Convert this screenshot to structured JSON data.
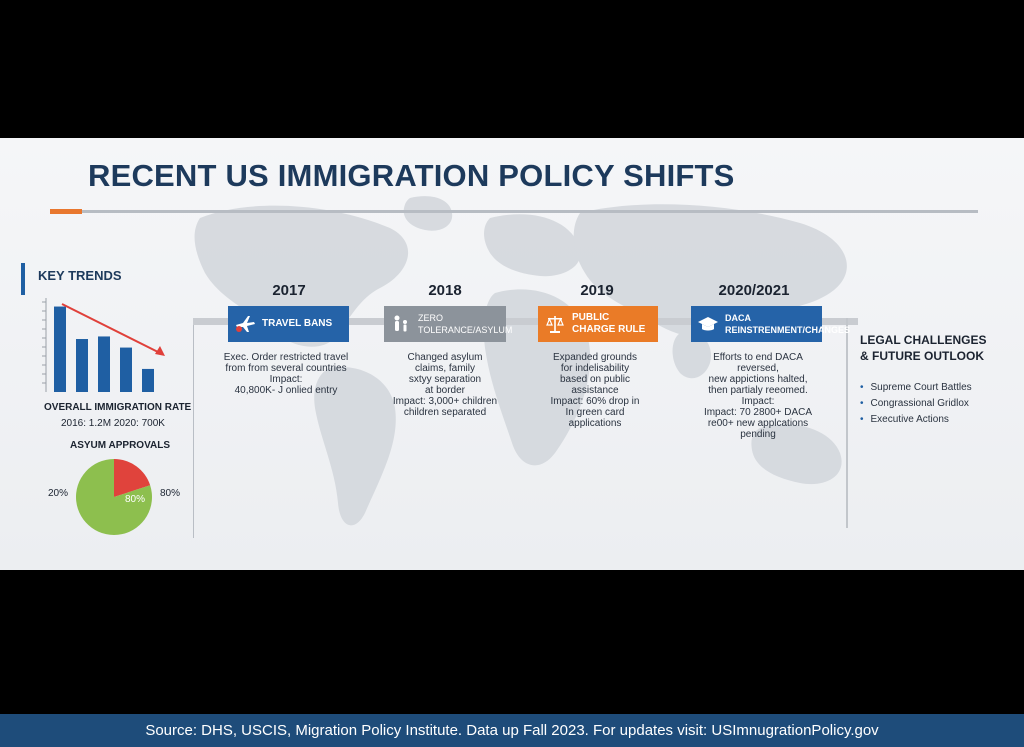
{
  "title": "RECENT US IMMIGRATION POLICY SHIFTS",
  "key_trends": {
    "heading": "KEY TRENDS",
    "rate_label": "OVERALL IMMIGRATION RATE",
    "rate_values": "2016: 1.2M   2020: 700K",
    "asylum_label": "ASYUM APPROVALS",
    "pie_left_label": "20%",
    "pie_inner_label": "80%",
    "pie_right_label": "80%"
  },
  "timeline": [
    {
      "year": "2017",
      "label": "TRAVEL BANS",
      "icon": "airplane-icon",
      "color": "#2563a8",
      "details": [
        "Exec. Order restricted travel",
        "from from several countries",
        "Impact:",
        "40,800K- J onlied entry"
      ]
    },
    {
      "year": "2018",
      "label": "ZERO TOLERANCE/ASYLUM",
      "icon": "family-icon",
      "color": "#8c939b",
      "details": [
        "Changed asylum",
        "claims, family",
        "sxtyy separation",
        "at border",
        "Impact: 3,000+ children",
        "children separated"
      ]
    },
    {
      "year": "2019",
      "label": "PUBLIC CHARGE RULE",
      "icon": "scales-icon",
      "color": "#ea7b27",
      "details": [
        "Expanded grounds",
        "for indelisability",
        "based on public",
        "assistance",
        "Impact: 60% drop in",
        "In green card",
        "applications"
      ]
    },
    {
      "year": "2020/2021",
      "label": "DACA REINSTRENMENT/CHANGES",
      "icon": "graduation-cap-icon",
      "color": "#2563a8",
      "details": [
        "Efforts to end DACA",
        "reversed,",
        "new appictions halted,",
        "then partialy reeomed.",
        "Impact:",
        "Impact: 70 2800+ DACA",
        "re00+ new applcations",
        "pending"
      ]
    }
  ],
  "legal": {
    "title_line1": "LEGAL CHALLENGES",
    "title_line2": "& FUTURE OUTLOOK",
    "items": [
      "Supreme Court Battles",
      "Congrassional Gridlox",
      "Executive Actions"
    ]
  },
  "footer": "Source: DHS, USCIS, Migration Policy Institute. Data up Fall 2023. For updates visit: USImnugrationPolicy.gov",
  "colors": {
    "title": "#1d3a5c",
    "accent_orange": "#e8772e",
    "bar_blue": "#1f5fa3",
    "trend_arrow": "#e0403a",
    "pie_green": "#8dbf4e",
    "pie_red": "#e0433c",
    "footer_bg": "#1e4c7a"
  },
  "chart_data": [
    {
      "type": "bar",
      "categories": [
        "1",
        "2",
        "3",
        "4",
        "5"
      ],
      "values": [
        1.0,
        0.62,
        0.65,
        0.52,
        0.27
      ],
      "title": "",
      "xlabel": "",
      "ylabel": "",
      "ylim": [
        0,
        1.1
      ]
    },
    {
      "type": "pie",
      "categories": [
        "20%",
        "80%"
      ],
      "values": [
        20,
        80
      ],
      "title": ""
    }
  ]
}
